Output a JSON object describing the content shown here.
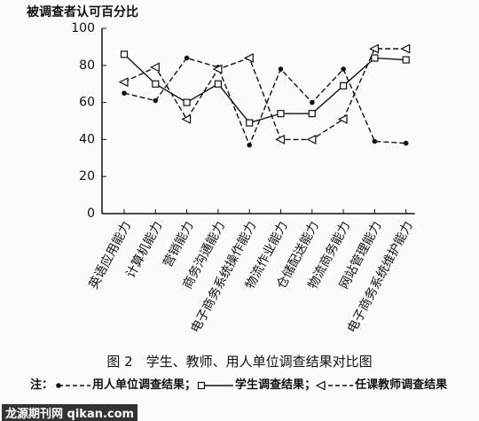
{
  "chart_data": {
    "type": "line",
    "y_axis_label": "被调查者认可百分比",
    "categories": [
      "英语应用能力",
      "计算机能力",
      "营销能力",
      "商务沟通能力",
      "电子商务系统操作能力",
      "物流作业能力",
      "仓储配送能力",
      "物流商务能力",
      "网站管理能力",
      "电子商务系统维护能力"
    ],
    "series": [
      {
        "name": "用人单位调查结果",
        "color": "#111111",
        "marker": "circle",
        "dashed": true,
        "values": [
          65,
          61,
          84,
          79,
          37,
          78,
          60,
          78,
          39,
          38
        ]
      },
      {
        "name": "学生调查结果",
        "color": "#111111",
        "marker": "square",
        "dashed": false,
        "values": [
          86,
          70,
          60,
          70,
          49,
          54,
          54,
          69,
          84,
          83
        ]
      },
      {
        "name": "任课教师调查结果",
        "color": "#111111",
        "marker": "triangle",
        "dashed": true,
        "values": [
          71,
          79,
          51,
          78,
          84,
          40,
          40,
          51,
          89,
          89
        ]
      }
    ],
    "ylim": [
      0,
      100
    ],
    "yticks": [
      0,
      20,
      40,
      60,
      80,
      100
    ],
    "caption": "图 2　学生、教师、用人单位调查结果对比图",
    "legend_prefix": "注：",
    "legend_separator": "；",
    "watermark": "龙源期刊网",
    "watermark_site": "qikan.com"
  }
}
